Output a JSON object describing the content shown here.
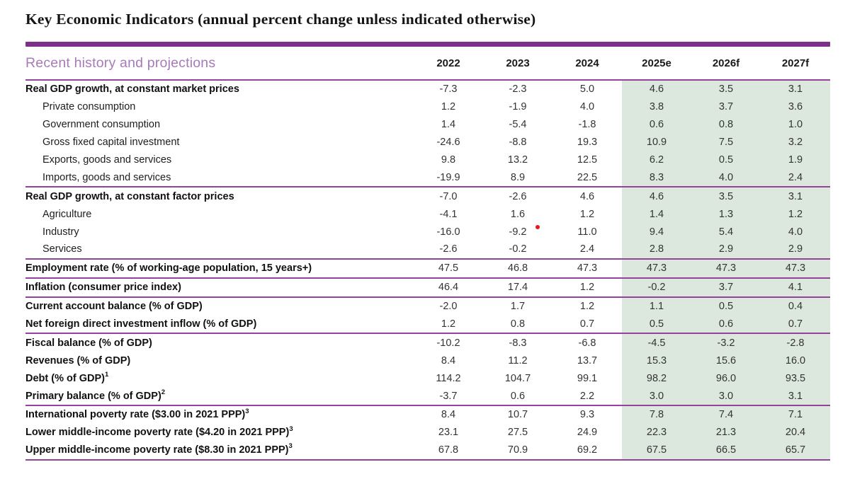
{
  "title": "Key Economic Indicators (annual percent change unless indicated otherwise)",
  "table": {
    "header_label": "Recent history and projections",
    "columns": [
      "2022",
      "2023",
      "2024",
      "2025e",
      "2026f",
      "2027f"
    ],
    "rows": [
      {
        "label": "Real GDP growth, at constant market prices",
        "bold": true,
        "indent": false,
        "sup": "",
        "values": [
          "-7.3",
          "-2.3",
          "5.0",
          "4.6",
          "3.5",
          "3.1"
        ],
        "separator_after": false
      },
      {
        "label": "Private consumption",
        "bold": false,
        "indent": true,
        "sup": "",
        "values": [
          "1.2",
          "-1.9",
          "4.0",
          "3.8",
          "3.7",
          "3.6"
        ],
        "separator_after": false
      },
      {
        "label": "Government consumption",
        "bold": false,
        "indent": true,
        "sup": "",
        "values": [
          "1.4",
          "-5.4",
          "-1.8",
          "0.6",
          "0.8",
          "1.0"
        ],
        "separator_after": false
      },
      {
        "label": "Gross fixed capital investment",
        "bold": false,
        "indent": true,
        "sup": "",
        "values": [
          "-24.6",
          "-8.8",
          "19.3",
          "10.9",
          "7.5",
          "3.2"
        ],
        "separator_after": false
      },
      {
        "label": "Exports, goods and services",
        "bold": false,
        "indent": true,
        "sup": "",
        "values": [
          "9.8",
          "13.2",
          "12.5",
          "6.2",
          "0.5",
          "1.9"
        ],
        "separator_after": false
      },
      {
        "label": "Imports, goods and services",
        "bold": false,
        "indent": true,
        "sup": "",
        "values": [
          "-19.9",
          "8.9",
          "22.5",
          "8.3",
          "4.0",
          "2.4"
        ],
        "separator_after": true
      },
      {
        "label": "Real GDP growth, at constant factor prices",
        "bold": true,
        "indent": false,
        "sup": "",
        "values": [
          "-7.0",
          "-2.6",
          "4.6",
          "4.6",
          "3.5",
          "3.1"
        ],
        "separator_after": false
      },
      {
        "label": "Agriculture",
        "bold": false,
        "indent": true,
        "sup": "",
        "values": [
          "-4.1",
          "1.6",
          "1.2",
          "1.4",
          "1.3",
          "1.2"
        ],
        "separator_after": false
      },
      {
        "label": "Industry",
        "bold": false,
        "indent": true,
        "sup": "",
        "values": [
          "-16.0",
          "-9.2",
          "11.0",
          "9.4",
          "5.4",
          "4.0"
        ],
        "separator_after": false
      },
      {
        "label": "Services",
        "bold": false,
        "indent": true,
        "sup": "",
        "values": [
          "-2.6",
          "-0.2",
          "2.4",
          "2.8",
          "2.9",
          "2.9"
        ],
        "separator_after": true
      },
      {
        "label": "Employment rate (% of working-age population, 15 years+)",
        "bold": true,
        "indent": false,
        "sup": "",
        "values": [
          "47.5",
          "46.8",
          "47.3",
          "47.3",
          "47.3",
          "47.3"
        ],
        "separator_after": true
      },
      {
        "label": "Inflation (consumer price index)",
        "bold": true,
        "indent": false,
        "sup": "",
        "values": [
          "46.4",
          "17.4",
          "1.2",
          "-0.2",
          "3.7",
          "4.1"
        ],
        "separator_after": true
      },
      {
        "label": "Current account balance (% of GDP)",
        "bold": true,
        "indent": false,
        "sup": "",
        "values": [
          "-2.0",
          "1.7",
          "1.2",
          "1.1",
          "0.5",
          "0.4"
        ],
        "separator_after": false
      },
      {
        "label": "Net foreign direct investment inflow (% of GDP)",
        "bold": true,
        "indent": false,
        "sup": "",
        "values": [
          "1.2",
          "0.8",
          "0.7",
          "0.5",
          "0.6",
          "0.7"
        ],
        "separator_after": true
      },
      {
        "label": "Fiscal balance (% of GDP)",
        "bold": true,
        "indent": false,
        "sup": "",
        "values": [
          "-10.2",
          "-8.3",
          "-6.8",
          "-4.5",
          "-3.2",
          "-2.8"
        ],
        "separator_after": false
      },
      {
        "label": "Revenues (% of GDP)",
        "bold": true,
        "indent": false,
        "sup": "",
        "values": [
          "8.4",
          "11.2",
          "13.7",
          "15.3",
          "15.6",
          "16.0"
        ],
        "separator_after": false
      },
      {
        "label": "Debt (% of GDP)",
        "bold": true,
        "indent": false,
        "sup": "1",
        "values": [
          "114.2",
          "104.7",
          "99.1",
          "98.2",
          "96.0",
          "93.5"
        ],
        "separator_after": false
      },
      {
        "label": "Primary balance (% of GDP)",
        "bold": true,
        "indent": false,
        "sup": "2",
        "values": [
          "-3.7",
          "0.6",
          "2.2",
          "3.0",
          "3.0",
          "3.1"
        ],
        "separator_after": true
      },
      {
        "label": "International poverty rate ($3.00 in 2021 PPP)",
        "bold": true,
        "indent": false,
        "sup": "3",
        "values": [
          "8.4",
          "10.7",
          "9.3",
          "7.8",
          "7.4",
          "7.1"
        ],
        "separator_after": false
      },
      {
        "label": "Lower middle-income poverty rate ($4.20 in 2021 PPP)",
        "bold": true,
        "indent": false,
        "sup": "3",
        "values": [
          "23.1",
          "27.5",
          "24.9",
          "22.3",
          "21.3",
          "20.4"
        ],
        "separator_after": false
      },
      {
        "label": "Upper middle-income poverty rate ($8.30 in 2021 PPP)",
        "bold": true,
        "indent": false,
        "sup": "3",
        "values": [
          "67.8",
          "70.9",
          "69.2",
          "67.5",
          "66.5",
          "65.7"
        ],
        "separator_after": true
      }
    ]
  },
  "annotations": {
    "red_dot": {
      "present": true,
      "color": "#e8191c"
    }
  },
  "colors": {
    "accent_bar": "#7d3089",
    "separator_line": "#93439b",
    "header_label_text": "#a77ab8",
    "projection_background": "#dce7dd",
    "red_dot": "#e8191c"
  }
}
